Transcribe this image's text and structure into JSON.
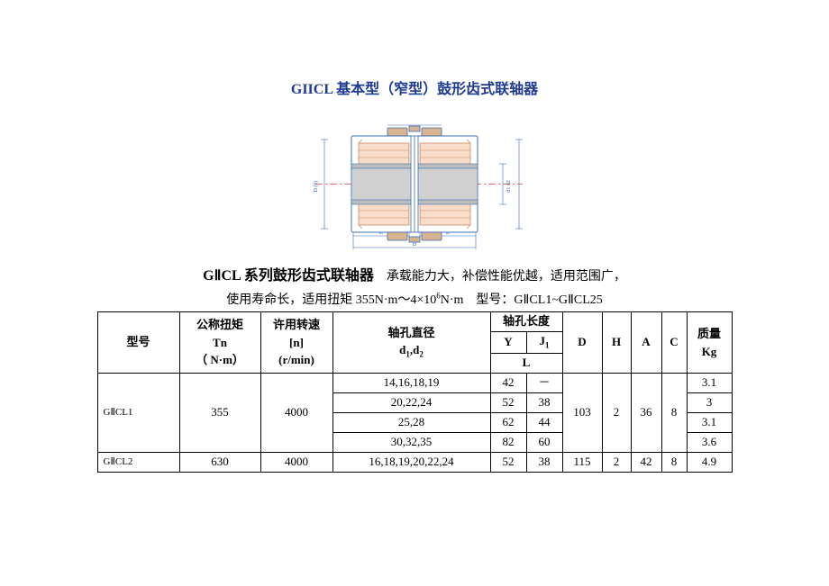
{
  "title": "GIICL 基本型（窄型）鼓形齿式联轴器",
  "diagram": {
    "outer_stroke": "#3a6fb0",
    "inner_fill": "#f7dcca",
    "inner_stroke": "#cd8b63",
    "shaft_fill": "#bdbdbd",
    "accent_fill": "#d9b28f",
    "dim_stroke": "#3a6fb0",
    "center_stroke": "#e04040"
  },
  "subhead_bold": "GⅡCL 系列鼓形齿式联轴器",
  "subhead_rest": "　承载能力大，补偿性能优越，适用范围广，",
  "subline_prefix": "使用寿命长，适用扭矩 355N·m～4×10",
  "subline_exp": "6",
  "subline_suffix": "N·m　型号：GⅡCL1~GⅡCL25",
  "headers": {
    "model": "型号",
    "tn_cn": "公称扭矩",
    "tn_sym": "Tn",
    "tn_unit": "（ N·m）",
    "n_cn": "许用转速",
    "n_sym": "[n]",
    "n_unit": "(r/min)",
    "bore_cn": "轴孔直径",
    "bore_sym_pre": "d",
    "bore_sym_s1": "1",
    "bore_sym_mid": ",d",
    "bore_sym_s2": "2",
    "len_cn": "轴孔长度",
    "len_y": "Y",
    "len_j_pre": "J",
    "len_j_s": "1",
    "len_L": "L",
    "D": "D",
    "H": "H",
    "A": "A",
    "C": "C",
    "mass_cn": "质量",
    "mass_unit": "Kg"
  },
  "rows": {
    "r1": {
      "model": "GⅡCL1",
      "tn": "355",
      "n": "4000",
      "bore": [
        "14,16,18,19",
        "20,22,24",
        "25,28",
        "30,32,35"
      ],
      "Y": [
        "42",
        "52",
        "62",
        "82"
      ],
      "J1": [
        "－",
        "38",
        "44",
        "60"
      ],
      "D": "103",
      "H": "2",
      "A": "36",
      "C": "8",
      "mass": [
        "3.1",
        "3",
        "3.1",
        "3.6"
      ]
    },
    "r2": {
      "model": "GⅡCL2",
      "tn": "630",
      "n": "4000",
      "bore": "16,18,19,20,22,24",
      "Y": "52",
      "J1": "38",
      "D": "115",
      "H": "2",
      "A": "42",
      "C": "8",
      "mass": "4.9"
    }
  },
  "colwidths": {
    "model": 78,
    "tn": 90,
    "n": 80,
    "bore": 175,
    "Y": 40,
    "J1": 40,
    "D": 44,
    "H": 32,
    "A": 34,
    "C": 28,
    "mass": 50
  }
}
